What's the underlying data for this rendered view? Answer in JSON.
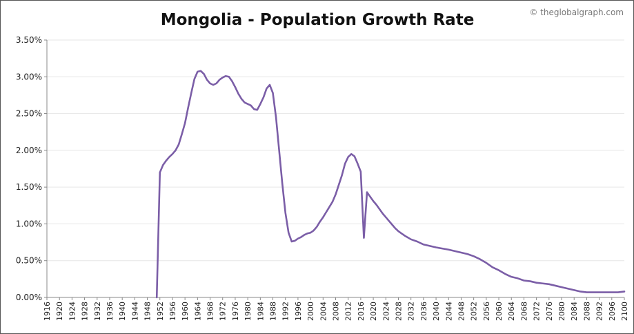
{
  "chart_data": {
    "type": "line",
    "title": "Mongolia - Population Growth Rate",
    "credit": "© theglobalgraph.com",
    "xlabel": "",
    "ylabel": "",
    "xlim": [
      1916,
      2100
    ],
    "ylim": [
      0,
      3.5
    ],
    "y_ticks": [
      {
        "value": 0.0,
        "label": "0.00%"
      },
      {
        "value": 0.5,
        "label": "0.50%"
      },
      {
        "value": 1.0,
        "label": "1.00%"
      },
      {
        "value": 1.5,
        "label": "1.50%"
      },
      {
        "value": 2.0,
        "label": "2.00%"
      },
      {
        "value": 2.5,
        "label": "2.50%"
      },
      {
        "value": 3.0,
        "label": "3.00%"
      },
      {
        "value": 3.5,
        "label": "3.50%"
      }
    ],
    "x_ticks": [
      "1916",
      "1920",
      "1924",
      "1928",
      "1932",
      "1936",
      "1940",
      "1944",
      "1948",
      "1952",
      "1956",
      "1960",
      "1964",
      "1968",
      "1972",
      "1976",
      "1980",
      "1984",
      "1988",
      "1992",
      "1996",
      "2000",
      "2004",
      "2008",
      "2012",
      "2016",
      "2020",
      "2024",
      "2028",
      "2032",
      "2036",
      "2040",
      "2044",
      "2048",
      "2052",
      "2056",
      "2060",
      "2064",
      "2068",
      "2072",
      "2076",
      "2080",
      "2084",
      "2088",
      "2092",
      "2096",
      "2100"
    ],
    "grid": true,
    "legend": "none",
    "series": [
      {
        "color": "#7b5ea7",
        "points": [
          [
            1951,
            0.0
          ],
          [
            1952,
            1.7
          ],
          [
            1953,
            1.8
          ],
          [
            1954,
            1.86
          ],
          [
            1955,
            1.91
          ],
          [
            1956,
            1.95
          ],
          [
            1957,
            2.0
          ],
          [
            1958,
            2.08
          ],
          [
            1959,
            2.22
          ],
          [
            1960,
            2.37
          ],
          [
            1961,
            2.58
          ],
          [
            1962,
            2.78
          ],
          [
            1963,
            2.97
          ],
          [
            1964,
            3.07
          ],
          [
            1965,
            3.08
          ],
          [
            1966,
            3.04
          ],
          [
            1967,
            2.96
          ],
          [
            1968,
            2.91
          ],
          [
            1969,
            2.89
          ],
          [
            1970,
            2.91
          ],
          [
            1971,
            2.96
          ],
          [
            1972,
            2.99
          ],
          [
            1973,
            3.01
          ],
          [
            1974,
            3.0
          ],
          [
            1975,
            2.94
          ],
          [
            1976,
            2.86
          ],
          [
            1977,
            2.77
          ],
          [
            1978,
            2.7
          ],
          [
            1979,
            2.65
          ],
          [
            1980,
            2.63
          ],
          [
            1981,
            2.61
          ],
          [
            1982,
            2.56
          ],
          [
            1983,
            2.55
          ],
          [
            1984,
            2.63
          ],
          [
            1985,
            2.72
          ],
          [
            1986,
            2.84
          ],
          [
            1987,
            2.89
          ],
          [
            1988,
            2.78
          ],
          [
            1989,
            2.45
          ],
          [
            1990,
            2.0
          ],
          [
            1991,
            1.55
          ],
          [
            1992,
            1.15
          ],
          [
            1993,
            0.88
          ],
          [
            1994,
            0.76
          ],
          [
            1995,
            0.77
          ],
          [
            1996,
            0.8
          ],
          [
            1997,
            0.82
          ],
          [
            1998,
            0.85
          ],
          [
            1999,
            0.87
          ],
          [
            2000,
            0.88
          ],
          [
            2001,
            0.91
          ],
          [
            2002,
            0.96
          ],
          [
            2003,
            1.03
          ],
          [
            2004,
            1.09
          ],
          [
            2005,
            1.16
          ],
          [
            2006,
            1.23
          ],
          [
            2007,
            1.3
          ],
          [
            2008,
            1.4
          ],
          [
            2009,
            1.53
          ],
          [
            2010,
            1.66
          ],
          [
            2011,
            1.82
          ],
          [
            2012,
            1.91
          ],
          [
            2013,
            1.95
          ],
          [
            2014,
            1.92
          ],
          [
            2015,
            1.82
          ],
          [
            2016,
            1.71
          ],
          [
            2017,
            0.81
          ],
          [
            2018,
            1.43
          ],
          [
            2019,
            1.37
          ],
          [
            2020,
            1.31
          ],
          [
            2021,
            1.26
          ],
          [
            2022,
            1.2
          ],
          [
            2023,
            1.14
          ],
          [
            2024,
            1.09
          ],
          [
            2025,
            1.04
          ],
          [
            2026,
            0.99
          ],
          [
            2027,
            0.94
          ],
          [
            2028,
            0.9
          ],
          [
            2029,
            0.87
          ],
          [
            2030,
            0.84
          ],
          [
            2032,
            0.79
          ],
          [
            2034,
            0.76
          ],
          [
            2036,
            0.72
          ],
          [
            2040,
            0.68
          ],
          [
            2044,
            0.65
          ],
          [
            2048,
            0.61
          ],
          [
            2050,
            0.59
          ],
          [
            2052,
            0.56
          ],
          [
            2054,
            0.52
          ],
          [
            2056,
            0.47
          ],
          [
            2058,
            0.41
          ],
          [
            2060,
            0.37
          ],
          [
            2062,
            0.32
          ],
          [
            2064,
            0.28
          ],
          [
            2066,
            0.26
          ],
          [
            2068,
            0.23
          ],
          [
            2070,
            0.22
          ],
          [
            2072,
            0.2
          ],
          [
            2074,
            0.19
          ],
          [
            2076,
            0.18
          ],
          [
            2078,
            0.16
          ],
          [
            2080,
            0.14
          ],
          [
            2082,
            0.12
          ],
          [
            2084,
            0.1
          ],
          [
            2086,
            0.08
          ],
          [
            2088,
            0.07
          ],
          [
            2090,
            0.07
          ],
          [
            2092,
            0.07
          ],
          [
            2094,
            0.07
          ],
          [
            2096,
            0.07
          ],
          [
            2098,
            0.07
          ],
          [
            2100,
            0.08
          ]
        ]
      }
    ]
  }
}
